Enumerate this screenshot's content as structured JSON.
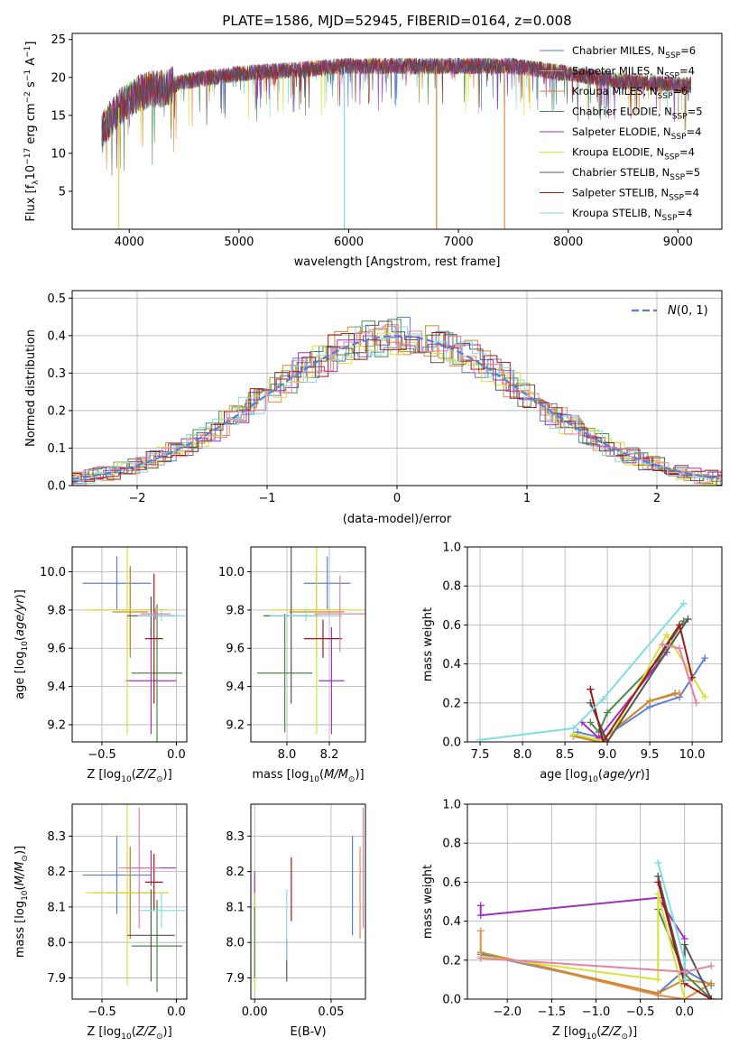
{
  "figure": {
    "title": "PLATE=1586, MJD=52945, FIBERID=0164, z=0.008",
    "colors": [
      "#5b7fd6",
      "#e8894a",
      "#c88a30",
      "#4a8a4a",
      "#a030c0",
      "#d4e23a",
      "#555555",
      "#a01818",
      "#80dde0"
    ]
  },
  "chart_data": [
    {
      "id": "spectrum",
      "type": "line",
      "xlabel": "wavelength [Angstrom, rest frame]",
      "ylabel": "Flux [f_λ 10^-17 erg cm^-2 s^-1 A^-1]",
      "xlim": [
        3480,
        9400
      ],
      "ylim": [
        0,
        25.8
      ],
      "xticks": [
        4000,
        5000,
        6000,
        7000,
        8000,
        9000
      ],
      "yticks": [
        5,
        10,
        15,
        20,
        25
      ],
      "grid": false,
      "legend": "top-right",
      "wavelength_range": [
        3750,
        9120
      ],
      "series": [
        {
          "name": "Chabrier MILES, N_SSP=6",
          "color": "#5b7fd6"
        },
        {
          "name": "Salpeter MILES, N_SSP=4",
          "color": "#e8894a"
        },
        {
          "name": "Kroupa MILES, N_SSP=6",
          "color": "#c88a30"
        },
        {
          "name": "Chabrier ELODIE, N_SSP=5",
          "color": "#4a8a4a"
        },
        {
          "name": "Salpeter ELODIE, N_SSP=4",
          "color": "#a030c0"
        },
        {
          "name": "Kroupa ELODIE, N_SSP=4",
          "color": "#d4e23a"
        },
        {
          "name": "Chabrier STELIB, N_SSP=5",
          "color": "#555555"
        },
        {
          "name": "Salpeter STELIB, N_SSP=4",
          "color": "#a01818"
        },
        {
          "name": "Kroupa STELIB, N_SSP=4",
          "color": "#80dde0"
        }
      ],
      "continuum": {
        "x": [
          3750,
          3800,
          3900,
          4000,
          4100,
          4200,
          4300,
          4500,
          5000,
          5500,
          6000,
          6500,
          7000,
          7500,
          8000,
          8500,
          9000,
          9120
        ],
        "y": [
          13,
          14,
          16,
          17,
          18,
          18.5,
          18.5,
          19.5,
          20.5,
          21,
          21.5,
          21.5,
          21.5,
          21.5,
          20.5,
          19.5,
          19,
          19
        ]
      },
      "drops": [
        {
          "x": 3905,
          "y": 0,
          "color": "#d4e23a"
        },
        {
          "x": 5960,
          "y": 0,
          "color": "#80dde0"
        },
        {
          "x": 6800,
          "y": 0,
          "color": "#c88a30"
        },
        {
          "x": 7420,
          "y": 0,
          "color": "#e8894a"
        }
      ]
    },
    {
      "id": "residuals",
      "type": "histogram",
      "xlabel": "(data-model)/error",
      "ylabel": "Normed distribution",
      "xlim": [
        -2.5,
        2.5
      ],
      "ylim": [
        0,
        0.52
      ],
      "xticks": [
        -2,
        -1,
        0,
        1,
        2
      ],
      "yticks": [
        0.0,
        0.1,
        0.2,
        0.3,
        0.4,
        0.5
      ],
      "grid": true,
      "legend": "top-right",
      "reference": {
        "name": "N(0,1)",
        "color": "#5b7fd6"
      },
      "bin_edges_step": 0.1,
      "series_colors": [
        "#5b7fd6",
        "#e8894a",
        "#c88a30",
        "#4a8a4a",
        "#a030c0",
        "#d4e23a",
        "#555555",
        "#a01818",
        "#80dde0",
        "#e87fa8"
      ]
    },
    {
      "id": "age_vs_Z",
      "type": "errorbar",
      "xlabel": "Z [log10(Z/Z☉)]",
      "ylabel": "age [log10(age/yr)]",
      "xlim": [
        -0.7,
        0.07
      ],
      "ylim": [
        9.11,
        10.13
      ],
      "xticks": [
        -0.5,
        0.0
      ],
      "yticks": [
        9.2,
        9.4,
        9.6,
        9.8,
        10.0
      ],
      "grid": true,
      "points": [
        {
          "x": -0.4,
          "xerr": 0.23,
          "y": 9.94,
          "yerr": 0.14,
          "color": "#5b7fd6"
        },
        {
          "x": -0.31,
          "xerr": 0.25,
          "y": 9.8,
          "yerr": 0.23,
          "color": "#e8894a"
        },
        {
          "x": -0.31,
          "xerr": 0.12,
          "y": 9.79,
          "yerr": 0.24,
          "color": "#c88a30"
        },
        {
          "x": -0.13,
          "xerr": 0.17,
          "y": 9.47,
          "yerr": 0.36,
          "color": "#4a8a4a"
        },
        {
          "x": -0.17,
          "xerr": 0.17,
          "y": 9.43,
          "yerr": 0.28,
          "color": "#a030c0"
        },
        {
          "x": -0.33,
          "xerr": 0.28,
          "y": 9.8,
          "yerr": 0.65,
          "color": "#d4e23a"
        },
        {
          "x": -0.17,
          "xerr": 0.16,
          "y": 9.77,
          "yerr": 0.1,
          "color": "#555555"
        },
        {
          "x": -0.15,
          "xerr": 0.06,
          "y": 9.65,
          "yerr": 0.34,
          "color": "#a01818"
        },
        {
          "x": -0.1,
          "xerr": 0.16,
          "y": 9.77,
          "yerr": 0.03,
          "color": "#80dde0"
        },
        {
          "x": -0.14,
          "xerr": 0.1,
          "y": 9.78,
          "yerr": 0.03,
          "color": "#e87fa8"
        }
      ]
    },
    {
      "id": "age_vs_mass",
      "type": "errorbar",
      "xlabel": "mass [log10(M/M☉)]",
      "ylabel": "",
      "xlim": [
        7.83,
        8.37
      ],
      "ylim": [
        9.11,
        10.13
      ],
      "xticks": [
        8.0,
        8.2
      ],
      "yticks": [
        9.2,
        9.4,
        9.6,
        9.8,
        10.0
      ],
      "grid": true,
      "points": [
        {
          "x": 8.19,
          "xerr": 0.11,
          "y": 9.94,
          "yerr": 0.14,
          "color": "#5b7fd6"
        },
        {
          "x": 8.14,
          "xerr": 0.13,
          "y": 9.8,
          "yerr": 0.23,
          "color": "#e8894a"
        },
        {
          "x": 8.14,
          "xerr": 0.13,
          "y": 9.79,
          "yerr": 0.24,
          "color": "#c88a30"
        },
        {
          "x": 7.99,
          "xerr": 0.13,
          "y": 9.47,
          "yerr": 0.31,
          "color": "#4a8a4a"
        },
        {
          "x": 8.21,
          "xerr": 0.06,
          "y": 9.43,
          "yerr": 0.28,
          "color": "#a030c0"
        },
        {
          "x": 8.14,
          "xerr": 0.22,
          "y": 9.8,
          "yerr": 0.65,
          "color": "#d4e23a"
        },
        {
          "x": 8.02,
          "xerr": 0.13,
          "y": 9.77,
          "yerr": 0.46,
          "color": "#555555"
        },
        {
          "x": 8.17,
          "xerr": 0.09,
          "y": 9.65,
          "yerr": 0.1,
          "color": "#a01818"
        },
        {
          "x": 8.09,
          "xerr": 0.17,
          "y": 9.77,
          "yerr": 0.03,
          "color": "#80dde0"
        },
        {
          "x": 8.25,
          "xerr": 0.12,
          "y": 9.78,
          "yerr": 0.2,
          "color": "#e87fa8"
        }
      ]
    },
    {
      "id": "mass_weight_vs_age",
      "type": "line",
      "xlabel": "age [log10(age/yr)]",
      "ylabel": "mass weight",
      "xlim": [
        7.35,
        10.35
      ],
      "ylim": [
        0,
        1
      ],
      "xticks": [
        7.5,
        8.0,
        8.5,
        9.0,
        9.5,
        10.0
      ],
      "yticks": [
        0.0,
        0.2,
        0.4,
        0.6,
        0.8,
        1.0
      ],
      "grid": true,
      "series": [
        {
          "color": "#5b7fd6",
          "x": [
            8.65,
            8.95,
            9.5,
            9.85,
            10.15
          ],
          "y": [
            0.05,
            0.02,
            0.18,
            0.23,
            0.43
          ]
        },
        {
          "color": "#e8894a",
          "x": [
            8.6,
            8.9,
            9.5,
            9.85
          ],
          "y": [
            0.03,
            0.0,
            0.21,
            0.25
          ]
        },
        {
          "color": "#c88a30",
          "x": [
            8.6,
            8.9,
            9.5,
            9.8
          ],
          "y": [
            0.03,
            0.0,
            0.21,
            0.25
          ]
        },
        {
          "color": "#4a8a4a",
          "x": [
            8.8,
            8.9,
            9.0,
            9.6,
            9.9
          ],
          "y": [
            0.1,
            0.05,
            0.15,
            0.42,
            0.62
          ]
        },
        {
          "color": "#a030c0",
          "x": [
            8.7,
            8.9,
            9.7
          ],
          "y": [
            0.1,
            0.02,
            0.46
          ]
        },
        {
          "color": "#d4e23a",
          "x": [
            8.6,
            9.0,
            9.7,
            10.15
          ],
          "y": [
            0.04,
            0.0,
            0.55,
            0.23
          ]
        },
        {
          "color": "#555555",
          "x": [
            8.8,
            9.0,
            9.95
          ],
          "y": [
            0.2,
            0.0,
            0.63
          ]
        },
        {
          "color": "#a01818",
          "x": [
            8.8,
            8.95,
            9.85,
            10.0
          ],
          "y": [
            0.27,
            0.0,
            0.6,
            0.33
          ]
        },
        {
          "color": "#80dde0",
          "x": [
            7.5,
            8.6,
            8.95,
            9.9
          ],
          "y": [
            0.01,
            0.07,
            0.22,
            0.71
          ]
        },
        {
          "color": "#e87fa8",
          "x": [
            9.65,
            9.85,
            10.05
          ],
          "y": [
            0.5,
            0.48,
            0.2
          ]
        }
      ]
    },
    {
      "id": "mass_vs_Z",
      "type": "errorbar",
      "xlabel": "Z [log10(Z/Z☉)]",
      "ylabel": "mass [log10(M/M☉)]",
      "xlim": [
        -0.7,
        0.07
      ],
      "ylim": [
        7.84,
        8.39
      ],
      "xticks": [
        -0.5,
        0.0
      ],
      "yticks": [
        7.9,
        8.0,
        8.1,
        8.2,
        8.3
      ],
      "grid": true,
      "points": [
        {
          "x": -0.4,
          "xerr": 0.23,
          "y": 8.19,
          "yerr": 0.11,
          "color": "#5b7fd6"
        },
        {
          "x": -0.31,
          "xerr": 0.25,
          "y": 8.14,
          "yerr": 0.13,
          "color": "#e8894a"
        },
        {
          "x": -0.31,
          "xerr": 0.12,
          "y": 8.14,
          "yerr": 0.13,
          "color": "#c88a30"
        },
        {
          "x": -0.13,
          "xerr": 0.17,
          "y": 7.99,
          "yerr": 0.13,
          "color": "#4a8a4a"
        },
        {
          "x": -0.17,
          "xerr": 0.17,
          "y": 8.21,
          "yerr": 0.05,
          "color": "#a030c0"
        },
        {
          "x": -0.33,
          "xerr": 0.28,
          "y": 8.14,
          "yerr": 0.26,
          "color": "#d4e23a"
        },
        {
          "x": -0.17,
          "xerr": 0.16,
          "y": 8.02,
          "yerr": 0.13,
          "color": "#555555"
        },
        {
          "x": -0.15,
          "xerr": 0.06,
          "y": 8.17,
          "yerr": 0.08,
          "color": "#a01818"
        },
        {
          "x": -0.1,
          "xerr": 0.16,
          "y": 8.09,
          "yerr": 0.05,
          "color": "#80dde0"
        },
        {
          "x": -0.25,
          "xerr": 0.14,
          "y": 8.21,
          "yerr": 0.17,
          "color": "#e87fa8"
        }
      ]
    },
    {
      "id": "mass_vs_ebv",
      "type": "errorbar",
      "xlabel": "E(B-V)",
      "ylabel": "",
      "xlim": [
        -0.0025,
        0.0725
      ],
      "ylim": [
        7.84,
        8.39
      ],
      "xticks": [
        0.0,
        0.05
      ],
      "xticklabels": [
        "0.00",
        "0.05"
      ],
      "yticks": [
        7.9,
        8.0,
        8.1,
        8.2,
        8.3
      ],
      "grid": true,
      "points": [
        {
          "x": 0.064,
          "y": 8.16,
          "yerr": 0.14,
          "color": "#5b7fd6"
        },
        {
          "x": 0.069,
          "y": 8.14,
          "yerr": 0.13,
          "color": "#e8894a"
        },
        {
          "x": 0.0,
          "y": 8.14,
          "yerr": 0.06,
          "color": "#a030c0"
        },
        {
          "x": 0.0,
          "y": 8.0,
          "yerr": 0.14,
          "color": "#d4e23a"
        },
        {
          "x": 0.0,
          "y": 8.0,
          "yerr": 0.1,
          "color": "#4a8a4a"
        },
        {
          "x": 0.021,
          "y": 7.95,
          "yerr": 0.06,
          "color": "#555555"
        },
        {
          "x": 0.024,
          "y": 8.15,
          "yerr": 0.09,
          "color": "#a01818"
        },
        {
          "x": 0.021,
          "y": 8.05,
          "yerr": 0.1,
          "color": "#80dde0"
        },
        {
          "x": 0.071,
          "y": 8.21,
          "yerr": 0.17,
          "color": "#e87fa8"
        }
      ]
    },
    {
      "id": "mass_weight_vs_Z",
      "type": "line",
      "xlabel": "Z [log10(Z/Z☉)]",
      "ylabel": "mass weight",
      "xlim": [
        -2.45,
        0.42
      ],
      "ylim": [
        0,
        1
      ],
      "xticks": [
        -2.0,
        -1.5,
        -1.0,
        -0.5,
        0.0
      ],
      "yticks": [
        0.0,
        0.2,
        0.4,
        0.6,
        0.8,
        1.0
      ],
      "grid": true,
      "series": [
        {
          "color": "#5b7fd6",
          "x": [
            -2.3,
            -0.3,
            0.0,
            0.3
          ],
          "y": [
            0.23,
            0.03,
            0.15,
            0.07
          ]
        },
        {
          "color": "#e8894a",
          "x": [
            -2.3,
            -2.3,
            -0.3,
            0.0,
            0.3
          ],
          "y": [
            0.35,
            0.24,
            0.02,
            0.0,
            0.08
          ]
        },
        {
          "color": "#c88a30",
          "x": [
            -2.3,
            -0.3,
            0.0,
            0.3
          ],
          "y": [
            0.24,
            0.03,
            0.1,
            0.08
          ]
        },
        {
          "color": "#4a8a4a",
          "x": [
            -0.3,
            0.0,
            0.3
          ],
          "y": [
            0.46,
            0.13,
            0.0
          ]
        },
        {
          "color": "#a030c0",
          "x": [
            -2.3,
            -2.3,
            -0.3,
            0.0
          ],
          "y": [
            0.48,
            0.43,
            0.52,
            0.31
          ]
        },
        {
          "color": "#d4e23a",
          "x": [
            -2.3,
            -0.3,
            -0.3,
            0.0
          ],
          "y": [
            0.22,
            0.1,
            0.54,
            0.0
          ]
        },
        {
          "color": "#555555",
          "x": [
            -0.3,
            0.0,
            0.0,
            0.3
          ],
          "y": [
            0.63,
            0.1,
            0.28,
            0.0
          ]
        },
        {
          "color": "#a01818",
          "x": [
            -0.3,
            0.0,
            0.3
          ],
          "y": [
            0.6,
            0.08,
            0.0
          ]
        },
        {
          "color": "#80dde0",
          "x": [
            -0.3,
            0.0,
            0.0
          ],
          "y": [
            0.7,
            0.2,
            0.1
          ]
        },
        {
          "color": "#e87fa8",
          "x": [
            -2.3,
            0.0,
            0.3
          ],
          "y": [
            0.21,
            0.14,
            0.17
          ]
        }
      ]
    }
  ]
}
